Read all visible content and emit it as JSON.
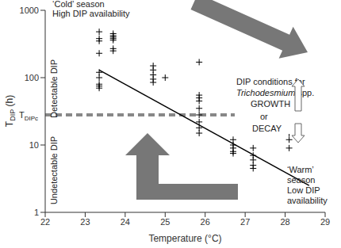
{
  "chart_data": {
    "type": "scatter",
    "xlabel": "Temperature (°C)",
    "ylabel": {
      "main": "T",
      "sub": "DIP",
      "rest": " (h)"
    },
    "xlim": [
      22,
      29
    ],
    "xticks": [
      22,
      23,
      24,
      25,
      26,
      27,
      28,
      29
    ],
    "ylim": [
      1,
      1000
    ],
    "yticks": [
      1,
      10,
      100,
      1000
    ],
    "log": "y",
    "grid": false,
    "points": {
      "x": [
        23.35,
        23.35,
        23.35,
        23.35,
        23.35,
        23.35,
        23.35,
        23.35,
        23.35,
        23.7,
        23.7,
        23.7,
        23.7,
        23.7,
        23.7,
        23.7,
        24.7,
        24.7,
        24.7,
        24.7,
        24.7,
        25.0,
        25.85,
        25.85,
        25.85,
        25.85,
        25.85,
        25.85,
        25.85,
        25.85,
        25.85,
        26.7,
        26.7,
        26.7,
        26.7,
        26.7,
        27.2,
        27.2,
        27.2,
        27.2,
        27.2,
        28.1,
        28.1,
        28.1
      ],
      "y": [
        480,
        380,
        350,
        230,
        120,
        100,
        80,
        75,
        70,
        450,
        420,
        400,
        380,
        360,
        270,
        250,
        150,
        130,
        110,
        95,
        85,
        100,
        170,
        55,
        50,
        45,
        35,
        28,
        22,
        18,
        15,
        12,
        10,
        9,
        8,
        7.5,
        9,
        7,
        6,
        5,
        4.5,
        15,
        12,
        9
      ],
      "marker": "plus",
      "color": "#000000"
    },
    "trend_line": {
      "x": [
        23.35,
        28.6
      ],
      "y": [
        130,
        2.5
      ],
      "line_style": "solid",
      "color": "#000000"
    },
    "threshold": {
      "value": 28,
      "label": {
        "main": "T",
        "sub": "DIPc"
      },
      "line_style": "dashed",
      "color": "#888888"
    },
    "annotations": {
      "cold": [
        "‘Cold’ season",
        "High DIP availability"
      ],
      "detectable": "Detectable DIP",
      "undetectable": "Undetectable DIP",
      "conditions": "DIP conditions for",
      "species": "Trichodesmium",
      "species_suffix": " spp.",
      "growth": "GROWTH",
      "or": "or",
      "decay": "DECAY",
      "warm": [
        "‘Warm’",
        "season",
        "Low DIP",
        "availability"
      ]
    }
  }
}
